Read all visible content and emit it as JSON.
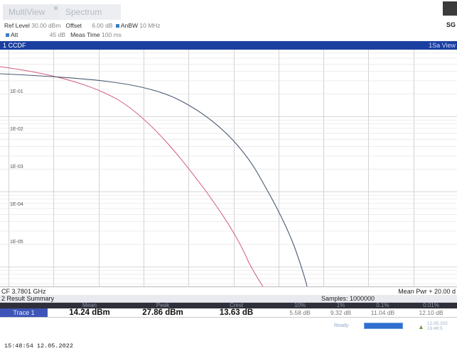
{
  "tabs": {
    "multiview": "MultiView",
    "spectrum": "Spectrum"
  },
  "settings": {
    "ref_level_label": "Ref Level",
    "ref_level_value": "30.00 dBm",
    "offset_label": "Offset",
    "offset_value": "6.00 dB",
    "rbw_label": "AnBW",
    "rbw_value": "10 MHz",
    "att_label": "Att",
    "att_value": "45 dB",
    "meas_time_label": "Meas Time",
    "meas_time_value": "100 ms",
    "right_label": "SG"
  },
  "window": {
    "title": "1 CCDF",
    "right_label": "1Sa View"
  },
  "plot": {
    "y_tick_labels": [
      "1E-01",
      "1E-02",
      "1E-03",
      "1E-04",
      "1E-05"
    ],
    "curve_colors": {
      "trace1": "#4a5a72",
      "gaussian_reference": "#d05a78"
    }
  },
  "cf_bar": {
    "center_freq": "CF 3.7801 GHz",
    "mean_pwr": "Mean Pwr + 20.00 d"
  },
  "result_summary": {
    "title": "2 Result Summary",
    "samples": "Samples: 1000000",
    "headers": [
      "",
      "Mean",
      "Peak",
      "Crest",
      "10%",
      "1%",
      "0.1%",
      "0.01%"
    ],
    "row": {
      "label": "Trace 1",
      "mean": "14.24 dBm",
      "peak": "27.86 dBm",
      "crest": "13.63 dB",
      "p10": "5.58 dB",
      "p1": "9.32 dB",
      "p01": "11.04 dB",
      "p001": "12.10 dB"
    }
  },
  "status": {
    "ready": "Ready",
    "clock_date": "12.05.202",
    "clock_time": "15:48:5"
  },
  "footer": {
    "timestamp": "15:48:54  12.05.2022"
  }
}
